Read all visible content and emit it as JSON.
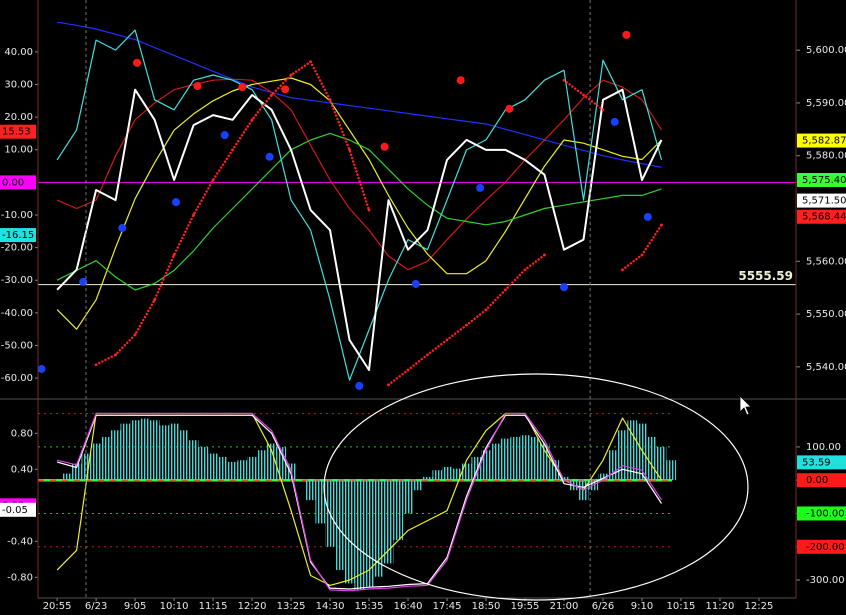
{
  "chart_data": [
    {
      "type": "line",
      "xlim": [
        -0.49,
        18.95
      ],
      "ylim": [
        -66.1,
        55.9
      ],
      "yticks": [
        {
          "value": 40,
          "label": "40.00"
        },
        {
          "value": 30,
          "label": "30.00"
        },
        {
          "value": 20,
          "label": "20.00"
        },
        {
          "value": 10,
          "label": "10.00"
        },
        {
          "value": -10,
          "label": "-10.00"
        },
        {
          "value": -20,
          "label": "-20.00"
        },
        {
          "value": -30,
          "label": "-30.00"
        },
        {
          "value": -40,
          "label": "-40.00"
        },
        {
          "value": -50,
          "label": "-50.00"
        },
        {
          "value": -60,
          "label": "-60.00"
        }
      ],
      "y2lim": [
        5534.1,
        5609.5
      ],
      "y2ticks": [
        {
          "value": 5600,
          "label": "5,600.00"
        },
        {
          "value": 5590,
          "label": "5,590.00"
        },
        {
          "value": 5580,
          "label": "5,580.00"
        },
        {
          "value": 5560,
          "label": "5,560.00"
        },
        {
          "value": 5550,
          "label": "5,550.00"
        },
        {
          "value": 5540,
          "label": "5,540.00"
        }
      ],
      "x": [
        0,
        0.5,
        1,
        1.5,
        2,
        2.5,
        3,
        3.5,
        4,
        4.5,
        5,
        5.5,
        6,
        6.5,
        7,
        7.5,
        8,
        8.5,
        9,
        9.5,
        10,
        10.5,
        11,
        11.5,
        12,
        12.5,
        13,
        13.5,
        14,
        14.5,
        15,
        15.5
      ],
      "series": [
        {
          "color": "#2030ff",
          "axis": "y2",
          "style": "line",
          "values": [
            5605.3,
            5604.7,
            5604.0,
            5603.0,
            5602.0,
            5600.5,
            5599.0,
            5597.5,
            5596.0,
            5594.5,
            5593.0,
            5592.0,
            5591.0,
            5590.5,
            5590.0,
            5589.5,
            5589.0,
            5588.5,
            5588.0,
            5587.5,
            5587.0,
            5586.5,
            5586.0,
            5585.0,
            5584.0,
            5583.0,
            5582.0,
            5581.0,
            5580.0,
            5579.2,
            5578.5,
            5577.8
          ]
        },
        {
          "color": "#d01818",
          "axis": "y2",
          "style": "line",
          "values": [
            5571.6,
            5570,
            5571.6,
            5580,
            5586.8,
            5590,
            5592.5,
            5593.5,
            5594.3,
            5594.5,
            5594.3,
            5592,
            5588.7,
            5582,
            5575.4,
            5570,
            5565.9,
            5561,
            5558.4,
            5560,
            5564.1,
            5568,
            5571.6,
            5575,
            5579.2,
            5583,
            5586.8,
            5591,
            5594.3,
            5593,
            5590.6,
            5584.9
          ]
        },
        {
          "color": "#f0f020",
          "axis": "y",
          "style": "line",
          "values": [
            -39,
            -45,
            -36,
            -20,
            -5,
            6,
            16,
            21,
            25,
            28,
            30,
            31,
            32,
            30,
            25,
            16,
            7,
            -4,
            -14,
            -22,
            -28,
            -28,
            -24,
            -15,
            -5,
            5,
            13,
            12,
            10,
            8,
            7,
            13
          ]
        },
        {
          "color": "#30d030",
          "axis": "y",
          "style": "line",
          "values": [
            -30,
            -27,
            -24,
            -29,
            -33,
            -31,
            -27,
            -21,
            -14,
            -8,
            -2,
            4,
            10,
            13,
            15,
            13,
            10,
            4,
            -2,
            -7,
            -11,
            -12,
            -13,
            -12,
            -10,
            -8,
            -7,
            -6,
            -5,
            -4,
            -4,
            -2
          ]
        },
        {
          "color": "#40e0e0",
          "axis": "y2",
          "style": "line",
          "values": [
            5579.2,
            5584.9,
            5601.9,
            5600.0,
            5603.8,
            5590.6,
            5588.7,
            5594.3,
            5595.3,
            5594.3,
            5592.5,
            5586.8,
            5571.6,
            5565.9,
            5552.7,
            5537.5,
            5547.0,
            5556.5,
            5564.1,
            5562.2,
            5571.6,
            5581.1,
            5583.0,
            5588.7,
            5590.6,
            5594.3,
            5596.2,
            5571.6,
            5598.1,
            5590.6,
            5592.5,
            5579.2
          ]
        },
        {
          "color": "#ffffff",
          "axis": "y2",
          "style": "line",
          "width": 2,
          "values": [
            5554.6,
            5558.4,
            5573.5,
            5571.6,
            5592.5,
            5586.8,
            5575.4,
            5585.8,
            5587.7,
            5586.8,
            5591.5,
            5588.7,
            5581.1,
            5569.7,
            5565.9,
            5545.1,
            5539.4,
            5571.6,
            5562.2,
            5565.9,
            5579.2,
            5583.0,
            5581.1,
            5581.1,
            5579.2,
            5576.4,
            5562.2,
            5564.1,
            5590.6,
            5592.5,
            5575.4,
            5583.0
          ]
        },
        {
          "color": "#ff2020",
          "axis": "y2",
          "style": "dots",
          "values": [
            null,
            null,
            5540.4,
            5542.3,
            5546.1,
            5552.7,
            5561.2,
            5568.8,
            5575.4,
            5581.1,
            5586.8,
            5591.5,
            5595.3,
            5597.8,
            5590.6,
            5581.1,
            5569.7,
            5536.6,
            5539.4,
            5542.3,
            5545.1,
            5547.9,
            5550.8,
            5554.6,
            5558.4,
            5561.2,
            5594.3,
            5591.5,
            5588.7,
            5558.4,
            5561.2,
            5566.9
          ]
        },
        {
          "color": "#ff1a1a",
          "axis": "y2",
          "style": "points",
          "x": [
            2.05,
            3.6,
            4.75,
            5.85,
            8.4,
            10.35,
            11.6,
            14.6
          ],
          "values": [
            5597.6,
            5593.2,
            5593.0,
            5592.6,
            5581.7,
            5594.3,
            5588.9,
            5602.9
          ]
        },
        {
          "color": "#1a40ff",
          "axis": "y2",
          "style": "points",
          "x": [
            -0.4,
            0.67,
            1.67,
            3.05,
            4.3,
            5.45,
            7.75,
            9.2,
            10.85,
            13.0,
            14.3,
            15.15
          ],
          "values": [
            5539.6,
            5556.1,
            5566.3,
            5571.2,
            5583.9,
            5579.8,
            5536.4,
            5555.7,
            5573.9,
            5555.1,
            5586.4,
            5568.4
          ]
        }
      ],
      "hlines": [
        {
          "value": 0,
          "axis": "y",
          "color": "#ff00ff"
        },
        {
          "value": 5555.59,
          "axis": "y2",
          "color": "#f0f0d0",
          "labeled": true
        }
      ],
      "markers_left": [
        {
          "value": 15.53,
          "color": "#ff2020"
        },
        {
          "value": 0,
          "label": "0.00",
          "color": "#ff00ff"
        },
        {
          "value": -16.15,
          "color": "#20e0e0"
        }
      ],
      "markers_right": [
        {
          "value": 5582.87,
          "label": "5,582.87",
          "color": "#ffff00"
        },
        {
          "value": 5575.4,
          "label": "5,575.40",
          "color": "#33ff33"
        },
        {
          "value": 5571.5,
          "label": "5,571.50",
          "color": "#ffffff"
        },
        {
          "value": 5568.44,
          "label": "5,568.44",
          "color": "#ff2020"
        }
      ]
    },
    {
      "type": "bar",
      "xlim": [
        -0.49,
        18.95
      ],
      "ylim": [
        -1.03,
        1.17
      ],
      "yticks": [
        {
          "value": 0.8,
          "label": "0.80"
        },
        {
          "value": 0.4,
          "label": "0.40"
        },
        {
          "value": -0.4,
          "label": "-0.40"
        },
        {
          "value": -0.8,
          "label": "-0.80"
        }
      ],
      "y2lim": [
        -354,
        241
      ],
      "y2ticks": [
        {
          "value": 100,
          "label": "100.00"
        },
        {
          "value": 0,
          "label": "0.00"
        },
        {
          "value": -100,
          "label": "-100.00"
        },
        {
          "value": -200,
          "label": "-200.00"
        },
        {
          "value": -300,
          "label": "-300.00"
        }
      ],
      "tick_boxes": [
        null,
        "#ff1a1a",
        "#1aff1a",
        "#ff1a1a",
        null
      ],
      "levels": [
        200,
        100,
        0,
        -100,
        -200
      ],
      "level_colors": [
        "#c02020",
        "#20c020",
        "#30ff30",
        "#20c020",
        "#c02020"
      ],
      "xticks": [
        {
          "value": 0,
          "label": "20:55"
        },
        {
          "value": 1,
          "label": "6/23"
        },
        {
          "value": 2,
          "label": "9:05"
        },
        {
          "value": 3,
          "label": "10:10"
        },
        {
          "value": 4,
          "label": "11:15"
        },
        {
          "value": 5,
          "label": "12:20"
        },
        {
          "value": 6,
          "label": "13:25"
        },
        {
          "value": 7,
          "label": "14:30"
        },
        {
          "value": 8,
          "label": "15:35"
        },
        {
          "value": 9,
          "label": "16:40"
        },
        {
          "value": 10,
          "label": "17:45"
        },
        {
          "value": 11,
          "label": "18:50"
        },
        {
          "value": 12,
          "label": "19:55"
        },
        {
          "value": 13,
          "label": "21:00"
        },
        {
          "value": 14,
          "label": "6/26"
        },
        {
          "value": 15,
          "label": "9:10"
        },
        {
          "value": 16,
          "label": "10:15"
        },
        {
          "value": 17,
          "label": "11:20"
        },
        {
          "value": 18,
          "label": "12:25"
        }
      ],
      "day_breaks": [
        0.74,
        13.67
      ],
      "bars": {
        "color": "#40d8d8",
        "axis": "y2",
        "x": [
          0,
          0.25,
          0.5,
          0.75,
          1,
          1.25,
          1.5,
          1.75,
          2,
          2.25,
          2.5,
          2.75,
          3,
          3.25,
          3.5,
          3.75,
          4,
          4.25,
          4.5,
          4.75,
          5,
          5.25,
          5.5,
          5.75,
          6,
          6.25,
          6.5,
          6.75,
          7,
          7.25,
          7.5,
          7.75,
          8,
          8.25,
          8.5,
          8.75,
          9,
          9.25,
          9.5,
          9.75,
          10,
          10.25,
          10.5,
          10.75,
          11,
          11.25,
          11.5,
          11.75,
          12,
          12.25,
          12.5,
          12.75,
          13,
          13.25,
          13.5,
          13.75,
          14,
          14.25,
          14.5,
          14.75,
          15,
          15.25,
          15.5,
          15.75
        ],
        "values": [
          0,
          20,
          50,
          80,
          110,
          130,
          150,
          170,
          180,
          185,
          180,
          165,
          170,
          150,
          120,
          100,
          80,
          70,
          55,
          60,
          70,
          90,
          110,
          100,
          50,
          0,
          -60,
          -130,
          -200,
          -270,
          -310,
          -330,
          -320,
          -290,
          -250,
          -180,
          -100,
          -30,
          10,
          30,
          40,
          35,
          50,
          70,
          90,
          110,
          125,
          130,
          135,
          130,
          110,
          60,
          10,
          -30,
          -60,
          -30,
          20,
          90,
          150,
          180,
          170,
          130,
          100,
          60
        ]
      },
      "x": [
        0,
        0.5,
        1,
        1.5,
        2,
        2.5,
        3,
        3.5,
        4,
        4.5,
        5,
        5.5,
        6,
        6.5,
        7,
        7.5,
        8,
        8.5,
        9,
        9.5,
        10,
        10.5,
        11,
        11.5,
        12,
        12.5,
        13,
        13.5,
        14,
        14.5,
        15,
        15.5
      ],
      "series": [
        {
          "color": "#f0f020",
          "axis": "y",
          "style": "line",
          "values": [
            -0.72,
            -0.5,
            1.02,
            1.02,
            1.02,
            1.02,
            1.02,
            1.02,
            1.02,
            1.02,
            1.02,
            0.61,
            -0.06,
            -0.78,
            -0.89,
            -0.83,
            -0.72,
            -0.5,
            -0.28,
            -0.17,
            -0.06,
            0.5,
            0.83,
            1.02,
            1.02,
            0.61,
            0.28,
            0.17,
            0.5,
            0.97,
            0.61,
            0.28
          ]
        },
        {
          "color": "#ffffff",
          "axis": "y",
          "style": "line",
          "values": [
            0.48,
            0.42,
            1.0,
            1.0,
            1.0,
            1.0,
            1.0,
            1.0,
            1.0,
            1.0,
            1.0,
            0.8,
            0.35,
            -0.63,
            -0.92,
            -0.93,
            -0.91,
            -0.9,
            -0.88,
            -0.87,
            -0.58,
            0.1,
            0.64,
            1.0,
            1.0,
            0.68,
            0.24,
            0.2,
            0.3,
            0.4,
            0.35,
            0.02
          ]
        },
        {
          "color": "#e040e0",
          "axis": "y",
          "style": "line",
          "values": [
            0.5,
            0.45,
            1.02,
            1.02,
            1.02,
            1.02,
            1.02,
            1.02,
            1.02,
            1.02,
            1.02,
            0.83,
            0.39,
            -0.61,
            -0.94,
            -0.95,
            -0.93,
            -0.92,
            -0.9,
            -0.89,
            -0.61,
            0.06,
            0.61,
            1.02,
            1.02,
            0.72,
            0.28,
            0.17,
            0.28,
            0.44,
            0.39,
            0.06
          ]
        }
      ],
      "markers_left": [
        {
          "value": 0,
          "label": "0.00",
          "color": "#ff00ff"
        },
        {
          "value": -0.05,
          "label": "-0.05",
          "color": "#ffffff"
        }
      ],
      "markers_right": [
        {
          "value": 53.59,
          "color": "#20e0e0"
        }
      ]
    }
  ]
}
